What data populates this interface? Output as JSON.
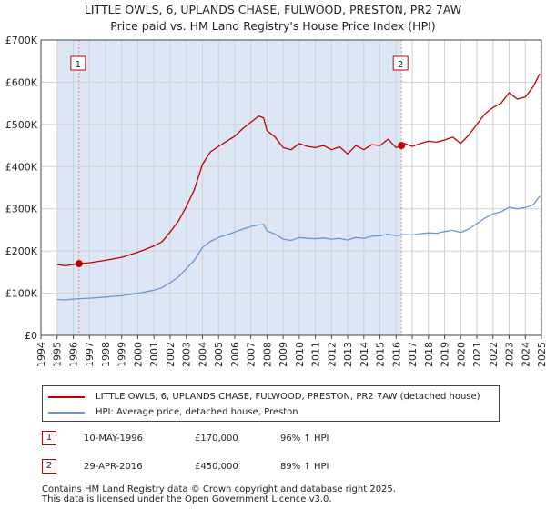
{
  "title": {
    "line1": "LITTLE OWLS, 6, UPLANDS CHASE, FULWOOD, PRESTON, PR2 7AW",
    "line2": "Price paid vs. HM Land Registry's House Price Index (HPI)"
  },
  "colors": {
    "property": "#c00000",
    "hpi": "#6a97cf",
    "shade": "#dce6f5",
    "marker_line": "#e88a8a",
    "grid": "#d0d0d0"
  },
  "chart_data": {
    "type": "line",
    "xlim": [
      1994.0,
      2025.0
    ],
    "ylim": [
      0,
      700000
    ],
    "y_ticks": [
      0,
      100000,
      200000,
      300000,
      400000,
      500000,
      600000,
      700000
    ],
    "y_tick_labels": [
      "£0",
      "£100K",
      "£200K",
      "£300K",
      "£400K",
      "£500K",
      "£600K",
      "£700K"
    ],
    "x_ticks": [
      1994,
      1995,
      1996,
      1997,
      1998,
      1999,
      2000,
      2001,
      2002,
      2003,
      2004,
      2005,
      2006,
      2007,
      2008,
      2009,
      2010,
      2011,
      2012,
      2013,
      2014,
      2015,
      2016,
      2017,
      2018,
      2019,
      2020,
      2021,
      2022,
      2023,
      2024,
      2025
    ],
    "shaded_range": [
      1995.0,
      2016.33
    ],
    "hatch_start": 2024.9,
    "sales": [
      {
        "label": "1",
        "x": 1996.36,
        "y": 170000
      },
      {
        "label": "2",
        "x": 2016.33,
        "y": 450000
      }
    ],
    "series": [
      {
        "name": "LITTLE OWLS, 6, UPLANDS CHASE, FULWOOD, PRESTON, PR2 7AW (detached house)",
        "x": [
          1995.0,
          1995.5,
          1996.0,
          1996.36,
          1997.0,
          1998.0,
          1999.0,
          2000.0,
          2001.0,
          2001.5,
          2002.0,
          2002.5,
          2003.0,
          2003.5,
          2004.0,
          2004.5,
          2005.0,
          2005.5,
          2006.0,
          2006.5,
          2007.0,
          2007.5,
          2007.8,
          2008.0,
          2008.5,
          2009.0,
          2009.5,
          2010.0,
          2010.5,
          2011.0,
          2011.5,
          2012.0,
          2012.5,
          2013.0,
          2013.5,
          2014.0,
          2014.5,
          2015.0,
          2015.5,
          2016.0,
          2016.33,
          2016.5,
          2017.0,
          2017.5,
          2018.0,
          2018.5,
          2019.0,
          2019.5,
          2020.0,
          2020.5,
          2021.0,
          2021.5,
          2022.0,
          2022.5,
          2023.0,
          2023.5,
          2024.0,
          2024.5,
          2024.9
        ],
        "values": [
          168000,
          165000,
          168000,
          170000,
          172000,
          178000,
          185000,
          197000,
          212000,
          222000,
          245000,
          270000,
          305000,
          345000,
          405000,
          435000,
          448000,
          460000,
          472000,
          490000,
          505000,
          520000,
          515000,
          485000,
          470000,
          445000,
          440000,
          455000,
          448000,
          445000,
          450000,
          440000,
          447000,
          430000,
          450000,
          440000,
          452000,
          450000,
          465000,
          445000,
          450000,
          455000,
          448000,
          455000,
          460000,
          458000,
          463000,
          470000,
          455000,
          475000,
          500000,
          525000,
          540000,
          550000,
          575000,
          560000,
          565000,
          590000,
          620000
        ]
      },
      {
        "name": "HPI: Average price, detached house, Preston",
        "x": [
          1995.0,
          1995.5,
          1996.0,
          1996.36,
          1997.0,
          1998.0,
          1999.0,
          2000.0,
          2001.0,
          2001.5,
          2002.0,
          2002.5,
          2003.0,
          2003.5,
          2004.0,
          2004.5,
          2005.0,
          2005.5,
          2006.0,
          2006.5,
          2007.0,
          2007.5,
          2007.8,
          2008.0,
          2008.5,
          2009.0,
          2009.5,
          2010.0,
          2010.5,
          2011.0,
          2011.5,
          2012.0,
          2012.5,
          2013.0,
          2013.5,
          2014.0,
          2014.5,
          2015.0,
          2015.5,
          2016.0,
          2016.33,
          2016.5,
          2017.0,
          2017.5,
          2018.0,
          2018.5,
          2019.0,
          2019.5,
          2020.0,
          2020.5,
          2021.0,
          2021.5,
          2022.0,
          2022.5,
          2023.0,
          2023.5,
          2024.0,
          2024.5,
          2024.9
        ],
        "values": [
          85000,
          84000,
          86000,
          87000,
          88000,
          91000,
          94000,
          100000,
          107000,
          113000,
          125000,
          138000,
          158000,
          178000,
          208000,
          223000,
          232000,
          238000,
          245000,
          252000,
          258000,
          262000,
          263000,
          248000,
          240000,
          228000,
          225000,
          232000,
          230000,
          229000,
          231000,
          228000,
          230000,
          226000,
          232000,
          230000,
          235000,
          236000,
          240000,
          236000,
          238000,
          239000,
          238000,
          241000,
          243000,
          242000,
          246000,
          249000,
          244000,
          252000,
          265000,
          278000,
          288000,
          293000,
          304000,
          300000,
          303000,
          310000,
          330000
        ]
      }
    ]
  },
  "legend": {
    "items": [
      {
        "label": "LITTLE OWLS, 6, UPLANDS CHASE, FULWOOD, PRESTON, PR2 7AW (detached house)"
      },
      {
        "label": "HPI: Average price, detached house, Preston"
      }
    ]
  },
  "transactions": [
    {
      "num": "1",
      "date": "10-MAY-1996",
      "price": "£170,000",
      "hpi": "96% ↑ HPI"
    },
    {
      "num": "2",
      "date": "29-APR-2016",
      "price": "£450,000",
      "hpi": "89% ↑ HPI"
    }
  ],
  "footer": {
    "line1": "Contains HM Land Registry data © Crown copyright and database right 2025.",
    "line2": "This data is licensed under the Open Government Licence v3.0."
  }
}
